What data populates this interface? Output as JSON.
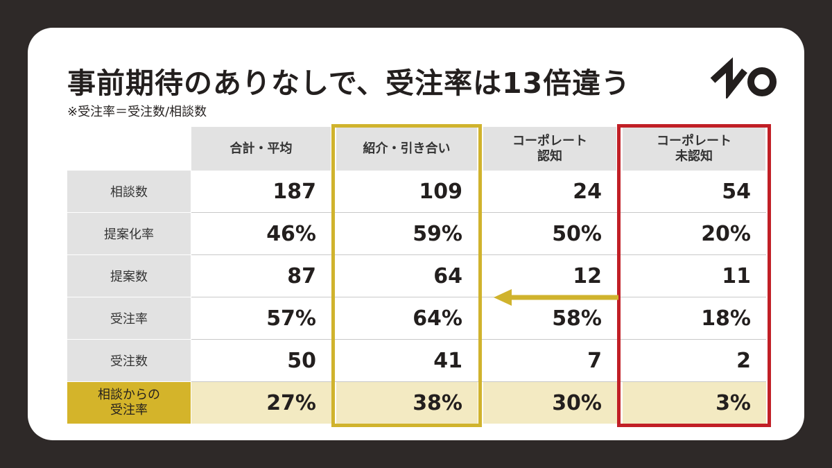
{
  "title": "事前期待のありなしで、受注率は13倍違う",
  "subtitle": "※受注率＝受注数/相談数",
  "colors": {
    "background": "#2e2928",
    "header_gray": "#e2e2e2",
    "highlight_gold": "#d4b42a",
    "highlight_row": "#f3eac2",
    "frame_yellow": "#d0b32d",
    "frame_red": "#c11f26"
  },
  "table": {
    "columns": [
      "合計・平均",
      "紹介・引き合い",
      "コーポレート\n認知",
      "コーポレート\n未認知"
    ],
    "rows": [
      {
        "label": "相談数",
        "values": [
          "187",
          "109",
          "24",
          "54"
        ]
      },
      {
        "label": "提案化率",
        "values": [
          "46%",
          "59%",
          "50%",
          "20%"
        ]
      },
      {
        "label": "提案数",
        "values": [
          "87",
          "64",
          "12",
          "11"
        ]
      },
      {
        "label": "受注率",
        "values": [
          "57%",
          "64%",
          "58%",
          "18%"
        ]
      },
      {
        "label": "受注数",
        "values": [
          "50",
          "41",
          "7",
          "2"
        ]
      },
      {
        "label": "相談からの\n受注率",
        "values": [
          "27%",
          "38%",
          "30%",
          "3%"
        ]
      }
    ]
  }
}
